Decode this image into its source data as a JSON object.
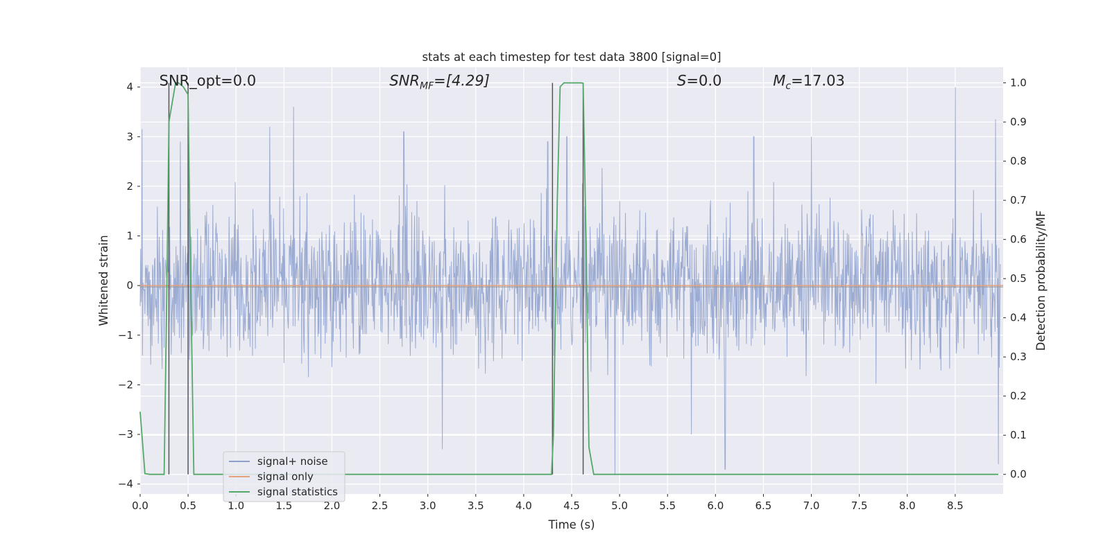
{
  "chart_data": {
    "type": "line",
    "title": "stats at each timestep for test data 3800 [signal=0]",
    "xlabel": "Time (s)",
    "ylabel_left": "Whitened strain",
    "ylabel_right": "Detection probability/MF",
    "xlim": [
      0.0,
      9.0
    ],
    "ylim_left": [
      -4.2,
      4.4
    ],
    "ylim_right": [
      -0.05,
      1.04
    ],
    "x_ticks": [
      "0.0",
      "0.5",
      "1.0",
      "1.5",
      "2.0",
      "2.5",
      "3.0",
      "3.5",
      "4.0",
      "4.5",
      "5.0",
      "5.5",
      "6.0",
      "6.5",
      "7.0",
      "7.5",
      "8.0",
      "8.5"
    ],
    "y_ticks_left": [
      "4",
      "3",
      "2",
      "1",
      "0",
      "−1",
      "−2",
      "−3",
      "−4"
    ],
    "y_ticks_right": [
      "1.0",
      "0.9",
      "0.8",
      "0.7",
      "0.6",
      "0.5",
      "0.4",
      "0.3",
      "0.2",
      "0.1",
      "0.0"
    ],
    "grid": true,
    "legend_position": "lower-left",
    "annotations": {
      "snr_opt": "SNR_opt=0.0",
      "snr_mf_main": "SNR",
      "snr_mf_sub": "MF",
      "snr_mf_value": "=[4.29]",
      "s_main": "S",
      "s_value": "=0.0",
      "mc_main": "M",
      "mc_sub": "c",
      "mc_value": "=17.03"
    },
    "series": [
      {
        "name": "signal+ noise",
        "axis": "left",
        "color": "#8da0cb",
        "description": "whitened noise, approx. gaussian, sigma ~1, spikes up to ~4",
        "peaks": [
          {
            "x": 0.02,
            "y": 3.15
          },
          {
            "x": 0.42,
            "y": 2.9
          },
          {
            "x": 1.35,
            "y": 3.2
          },
          {
            "x": 1.6,
            "y": 3.6
          },
          {
            "x": 2.75,
            "y": 3.1
          },
          {
            "x": 3.15,
            "y": -3.3
          },
          {
            "x": 4.25,
            "y": 2.9
          },
          {
            "x": 4.45,
            "y": 3.0
          },
          {
            "x": 4.95,
            "y": -3.8
          },
          {
            "x": 5.75,
            "y": -3.0
          },
          {
            "x": 6.1,
            "y": -3.7
          },
          {
            "x": 6.4,
            "y": 3.0
          },
          {
            "x": 7.0,
            "y": 3.0
          },
          {
            "x": 8.5,
            "y": 4.0
          },
          {
            "x": 8.92,
            "y": 3.35
          },
          {
            "x": 8.95,
            "y": -3.6
          }
        ]
      },
      {
        "name": "signal only",
        "axis": "left",
        "color": "#e5a07e",
        "x": [
          0.0,
          9.0
        ],
        "y": [
          0.0,
          0.0
        ]
      },
      {
        "name": "signal statistics",
        "axis": "right",
        "color": "#55a868",
        "x": [
          0.0,
          0.05,
          0.1,
          0.2,
          0.25,
          0.28,
          0.3,
          0.37,
          0.4,
          0.45,
          0.5,
          0.52,
          0.56,
          0.6,
          0.8,
          1.0,
          1.5,
          2.0,
          2.5,
          3.0,
          3.5,
          4.0,
          4.29,
          4.31,
          4.35,
          4.38,
          4.42,
          4.5,
          4.6,
          4.62,
          4.65,
          4.68,
          4.73,
          4.8,
          5.0,
          6.0,
          7.0,
          8.0,
          8.95
        ],
        "y": [
          0.16,
          0.002,
          0.0,
          0.0,
          0.0,
          0.5,
          0.9,
          1.0,
          1.0,
          0.99,
          0.97,
          0.6,
          0.0,
          0.0,
          0.0,
          0.0,
          0.0,
          0.0,
          0.0,
          0.0,
          0.0,
          0.0,
          0.0,
          0.1,
          0.7,
          0.99,
          1.0,
          1.0,
          1.0,
          0.999,
          0.6,
          0.07,
          0.0,
          0.0,
          0.0,
          0.0,
          0.0,
          0.0,
          0.0
        ]
      }
    ],
    "vertical_markers": {
      "color": "#555555",
      "x": [
        0.3,
        0.5,
        4.3,
        4.62
      ]
    }
  }
}
